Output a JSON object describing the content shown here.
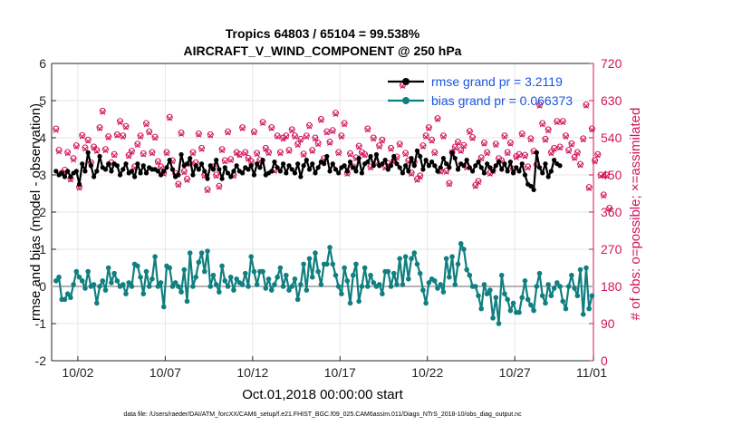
{
  "chart_data": {
    "type": "line",
    "title": "Tropics 64803 / 65104 = 99.538%",
    "subtitle": "AIRCRAFT_V_WIND_COMPONENT @ 250 hPa",
    "xlabel": "Oct.01,2018 00:00:00 start",
    "ylabel": "rmse and bias (model - observation)",
    "ylabel_right": "# of obs: o=possible; ×=assimilated",
    "footer": "data file: /Users/raeder/DAI/ATM_forcXX/CAM6_setup/f.e21.FHIST_BGC.f09_025.CAM6assim.011/Diags_NTrS_2018-10/obs_diag_output.nc",
    "xlim": [
      0.5,
      31.5
    ],
    "ylim": [
      -2,
      6
    ],
    "ylim_right": [
      0,
      720
    ],
    "grid": true,
    "legend_position": "top-right",
    "x_ticks": [
      {
        "x": 2,
        "label": "10/02"
      },
      {
        "x": 7,
        "label": "10/07"
      },
      {
        "x": 12,
        "label": "10/12"
      },
      {
        "x": 17,
        "label": "10/17"
      },
      {
        "x": 22,
        "label": "10/22"
      },
      {
        "x": 27,
        "label": "10/27"
      },
      {
        "x": 32,
        "label": "11/01"
      }
    ],
    "y_ticks": [
      "-2",
      "-1",
      "0",
      "1",
      "2",
      "3",
      "4",
      "5",
      "6"
    ],
    "y_ticks_right": [
      "0",
      "90",
      "180",
      "270",
      "360",
      "450",
      "540",
      "630",
      "720"
    ],
    "series": [
      {
        "name": "rmse grand pr = 3.2119",
        "color": "#000000",
        "marker": "star",
        "values": [
          3.1,
          3.0,
          3.05,
          2.95,
          3.1,
          2.95,
          3.05,
          3.1,
          2.75,
          3.3,
          3.1,
          3.6,
          3.25,
          2.95,
          3.1,
          3.5,
          3.2,
          3.15,
          3.3,
          3.1,
          3.3,
          3.25,
          3.0,
          3.15,
          3.3,
          3.05,
          3.1,
          2.95,
          3.3,
          3.05,
          3.25,
          3.05,
          3.2,
          3.15,
          3.15,
          3.1,
          3.0,
          3.1,
          3.2,
          3.4,
          3.15,
          2.95,
          3.0,
          3.55,
          3.25,
          3.3,
          3.45,
          3.0,
          3.25,
          3.15,
          3.3,
          3.1,
          2.9,
          3.25,
          3.15,
          3.4,
          3.15,
          2.9,
          3.2,
          3.05,
          2.95,
          3.1,
          3.25,
          3.1,
          3.05,
          3.2,
          3.15,
          3.25,
          3.0,
          3.3,
          3.2,
          3.4,
          3.0,
          3.05,
          3.1,
          3.35,
          3.2,
          3.1,
          3.3,
          3.05,
          3.25,
          3.15,
          3.05,
          3.3,
          2.95,
          3.25,
          3.4,
          3.15,
          3.3,
          3.05,
          3.2,
          3.35,
          3.3,
          3.5,
          3.1,
          3.3,
          3.15,
          3.05,
          3.2,
          3.25,
          3.1,
          3.35,
          3.2,
          3.1,
          3.45,
          3.05,
          3.3,
          3.35,
          3.5,
          3.25,
          3.55,
          3.25,
          3.3,
          3.4,
          3.15,
          3.25,
          3.5,
          3.3,
          3.2,
          3.05,
          3.25,
          3.1,
          3.45,
          3.25,
          3.65,
          3.5,
          3.15,
          3.4,
          3.25,
          3.35,
          3.25,
          3.1,
          3.2,
          3.45,
          3.3,
          3.2,
          3.6,
          3.45,
          3.15,
          3.3,
          3.25,
          3.4,
          3.2,
          3.1,
          3.25,
          3.35,
          3.2,
          3.05,
          3.3,
          3.2,
          3.1,
          3.25,
          3.35,
          3.15,
          3.3,
          3.1,
          3.35,
          3.05,
          3.2,
          3.1,
          3.3,
          3.0,
          2.75,
          2.7,
          2.6,
          3.6,
          3.2,
          3.05,
          3.3,
          2.95,
          3.1,
          3.4,
          3.3,
          3.25
        ]
      },
      {
        "name": "bias grand pr = 0.066373",
        "color": "#107f80",
        "marker": "dot",
        "values": [
          0.15,
          0.25,
          -0.35,
          -0.35,
          -0.2,
          -0.3,
          0.05,
          0.4,
          0.25,
          0.15,
          -0.05,
          0.4,
          0.0,
          0.05,
          -0.45,
          0.0,
          0.15,
          -0.1,
          0.5,
          0.1,
          0.35,
          0.15,
          0.0,
          0.05,
          -0.2,
          0.1,
          0.0,
          0.6,
          0.55,
          0.25,
          -0.2,
          0.4,
          0.0,
          0.2,
          0.8,
          0.0,
          0.1,
          -0.55,
          0.55,
          0.5,
          0.0,
          0.1,
          0.0,
          -0.15,
          0.45,
          -0.4,
          0.9,
          0.0,
          0.25,
          0.65,
          0.9,
          0.4,
          0.95,
          0.0,
          0.3,
          0.05,
          -0.15,
          0.55,
          0.15,
          0.0,
          0.25,
          -0.1,
          0.2,
          0.1,
          0.05,
          0.35,
          0.0,
          0.8,
          0.4,
          0.05,
          0.4,
          0.4,
          -0.05,
          0.2,
          -0.1,
          0.05,
          0.25,
          0.5,
          0.0,
          0.3,
          -0.1,
          0.0,
          0.2,
          -0.35,
          0.05,
          0.6,
          -0.1,
          0.75,
          0.25,
          0.9,
          0.4,
          0.05,
          0.6,
          0.6,
          1.05,
          0.6,
          0.3,
          0.0,
          -0.2,
          0.5,
          0.15,
          -0.45,
          0.3,
          0.6,
          -0.4,
          0.0,
          0.5,
          0.0,
          0.3,
          0.1,
          0.0,
          0.05,
          -0.2,
          0.4,
          0.4,
          0.0,
          0.35,
          0.05,
          0.75,
          0.05,
          0.8,
          0.2,
          0.75,
          0.9,
          0.6,
          0.35,
          -0.1,
          -0.45,
          0.1,
          0.2,
          0.15,
          -0.05,
          0.05,
          -0.15,
          0.75,
          0.25,
          0.8,
          0.05,
          0.6,
          1.15,
          1.0,
          0.45,
          0.3,
          0.0,
          0.0,
          -0.25,
          -0.6,
          0.05,
          -0.2,
          -0.1,
          -0.85,
          -0.3,
          -1.0,
          0.3,
          -0.2,
          -0.35,
          -0.65,
          -0.45,
          -0.7,
          -0.7,
          -0.3,
          0.15,
          -0.35,
          -0.5,
          -0.65,
          0.0,
          0.35,
          -0.25,
          -0.45,
          0.05,
          -0.25,
          -0.05,
          0.1,
          0.0,
          -0.4,
          -0.6,
          0.0,
          0.3,
          -0.05,
          -0.25,
          0.45,
          -0.75,
          0.5,
          -0.6,
          -0.25
        ]
      }
    ],
    "obs_count_series": [
      {
        "name": "possible",
        "color": "#d3135b",
        "marker": "circle",
        "values": [
          562,
          510,
          455,
          462,
          505,
          441,
          490,
          521,
          421,
          546,
          516,
          535,
          480,
          518,
          510,
          565,
          605,
          512,
          543,
          480,
          500,
          548,
          580,
          545,
          568,
          498,
          508,
          470,
          525,
          545,
          502,
          575,
          555,
          505,
          542,
          483,
          470,
          455,
          505,
          590,
          485,
          454,
          428,
          552,
          459,
          440,
          478,
          505,
          480,
          550,
          515,
          450,
          415,
          548,
          470,
          450,
          423,
          512,
          485,
          555,
          488,
          450,
          505,
          500,
          565,
          505,
          491,
          483,
          555,
          503,
          486,
          578,
          515,
          505,
          565,
          462,
          545,
          505,
          540,
          545,
          510,
          560,
          545,
          525,
          537,
          501,
          545,
          570,
          510,
          540,
          527,
          585,
          490,
          555,
          530,
          558,
          600,
          505,
          545,
          575,
          455,
          502,
          470,
          492,
          520,
          505,
          500,
          562,
          470,
          540,
          480,
          521,
          535,
          470,
          478,
          515,
          485,
          494,
          525,
          668,
          503,
          485,
          455,
          481,
          440,
          448,
          521,
          545,
          565,
          535,
          505,
          587,
          460,
          545,
          460,
          430,
          505,
          518,
          530,
          510,
          522,
          470,
          556,
          541,
          425,
          435,
          492,
          528,
          505,
          455,
          462,
          525,
          490,
          485,
          545,
          505,
          528,
          464,
          495,
          500,
          550,
          498,
          470,
          538,
          508,
          475,
          620,
          575,
          537,
          560,
          505,
          515,
          580,
          518,
          580,
          545,
          510,
          526,
          493,
          505,
          476,
          538,
          620,
          420,
          562,
          485,
          500,
          450,
          402,
          450,
          370
        ]
      },
      {
        "name": "assimilated",
        "color": "#d3135b",
        "marker": "x",
        "values": [
          558,
          506,
          451,
          458,
          502,
          438,
          486,
          518,
          418,
          543,
          513,
          532,
          477,
          515,
          507,
          562,
          602,
          509,
          540,
          477,
          497,
          545,
          577,
          542,
          565,
          495,
          505,
          467,
          522,
          542,
          499,
          572,
          552,
          502,
          539,
          480,
          467,
          452,
          502,
          587,
          482,
          451,
          425,
          549,
          456,
          437,
          475,
          502,
          477,
          547,
          512,
          447,
          412,
          545,
          467,
          447,
          420,
          509,
          482,
          552,
          485,
          447,
          502,
          497,
          562,
          502,
          488,
          480,
          552,
          500,
          483,
          575,
          512,
          502,
          562,
          459,
          542,
          502,
          537,
          542,
          507,
          557,
          542,
          522,
          534,
          498,
          542,
          567,
          507,
          537,
          524,
          582,
          487,
          552,
          527,
          555,
          597,
          502,
          542,
          572,
          452,
          499,
          467,
          489,
          517,
          502,
          497,
          559,
          467,
          537,
          477,
          518,
          532,
          467,
          475,
          512,
          482,
          491,
          522,
          665,
          500,
          482,
          452,
          478,
          437,
          445,
          518,
          542,
          562,
          532,
          502,
          584,
          457,
          542,
          457,
          427,
          502,
          515,
          527,
          507,
          519,
          467,
          553,
          538,
          422,
          432,
          489,
          525,
          502,
          452,
          459,
          522,
          487,
          482,
          542,
          502,
          525,
          461,
          492,
          497,
          547,
          495,
          467,
          535,
          505,
          472,
          617,
          572,
          534,
          557,
          502,
          512,
          577,
          515,
          577,
          542,
          507,
          523,
          490,
          502,
          473,
          535,
          617,
          417,
          559,
          482,
          497,
          447,
          399,
          447,
          367
        ]
      }
    ],
    "reference_line": {
      "value": 0
    }
  }
}
